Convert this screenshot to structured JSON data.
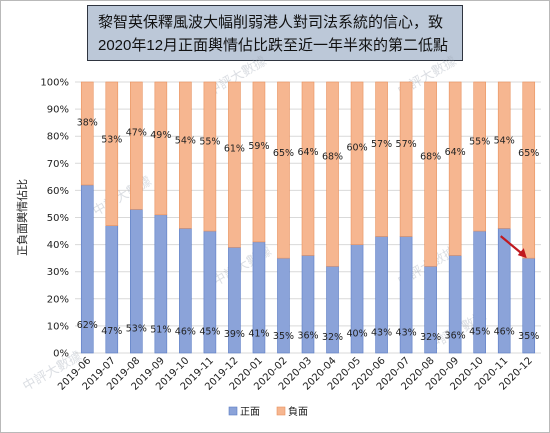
{
  "title": "黎智英保釋風波大幅削弱港人對司法系統的信心，致2020年12月正面輿情佔比跌至近一年半來的第二低點",
  "watermark_text": "中評大數據",
  "colors": {
    "positive": "#8ba3d9",
    "positive_stroke": "#5b7cc4",
    "negative": "#f6b690",
    "negative_stroke": "#e8925f",
    "grid": "#d9d9d9",
    "arrow": "#c0191f"
  },
  "chart_data": {
    "type": "bar",
    "stacked": true,
    "percent": true,
    "categories": [
      "2019-06",
      "2019-07",
      "2019-08",
      "2019-09",
      "2019-10",
      "2019-11",
      "2019-12",
      "2020-01",
      "2020-02",
      "2020-03",
      "2020-04",
      "2020-05",
      "2020-06",
      "2020-07",
      "2020-08",
      "2020-09",
      "2020-10",
      "2020-11",
      "2020-12"
    ],
    "series": [
      {
        "name": "正面",
        "values": [
          62,
          47,
          53,
          51,
          46,
          45,
          39,
          41,
          35,
          36,
          32,
          40,
          43,
          43,
          32,
          36,
          45,
          46,
          35
        ]
      },
      {
        "name": "負面",
        "values": [
          38,
          53,
          47,
          49,
          54,
          55,
          61,
          59,
          65,
          64,
          68,
          60,
          57,
          57,
          68,
          64,
          55,
          54,
          65
        ]
      }
    ],
    "data_labels": {
      "正面": [
        "62%",
        "47%",
        "53%",
        "51%",
        "46%",
        "45%",
        "39%",
        "41%",
        "35%",
        "36%",
        "32%",
        "40%",
        "43%",
        "43%",
        "32%",
        "36%",
        "45%",
        "46%",
        "35%"
      ],
      "負面": [
        "38%",
        "53%",
        "47%",
        "49%",
        "54%",
        "55%",
        "61%",
        "59%",
        "65%",
        "64%",
        "68%",
        "60%",
        "57%",
        "57%",
        "68%",
        "64%",
        "55%",
        "54%",
        "65%"
      ]
    },
    "ylabel": "正負面輿情佔比",
    "ylim": [
      0,
      100
    ],
    "yticks": [
      "0%",
      "10%",
      "20%",
      "30%",
      "40%",
      "50%",
      "60%",
      "70%",
      "80%",
      "90%",
      "100%"
    ],
    "grid": true,
    "legend": "bottom",
    "annotation": "red arrow pointing to 2020-12 positive value"
  }
}
